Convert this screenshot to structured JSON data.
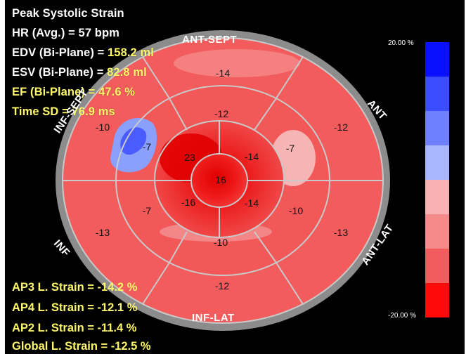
{
  "header": {
    "title": "Peak Systolic Strain",
    "hr": "HR (Avg.) = 57 bpm",
    "edv_label": "EDV (Bi-Plane) = ",
    "edv_value": "158.2 ml",
    "esv_label": "ESV (Bi-Plane) = ",
    "esv_value": "82.8 ml",
    "ef_label": "EF (Bi-Plane) = ",
    "ef_value": "47.6 %",
    "time_label": "Time SD = ",
    "time_value": "76.9 ms"
  },
  "footer": {
    "ap3_label": "AP3 L. Strain = ",
    "ap3_value": "-14.2 %",
    "ap4_label": "AP4 L. Strain = ",
    "ap4_value": "-12.1 %",
    "ap2_label": "AP2 L. Strain = ",
    "ap2_value": "-11.4 %",
    "global_label": "Global L. Strain = ",
    "global_value": "-12.5 %"
  },
  "walls": {
    "ant_sept": "ANT-SEPT",
    "ant": "ANT",
    "ant_lat": "ANT-LAT",
    "inf_lat": "INF-LAT",
    "inf": "INF",
    "inf_sept": "INF-SEPT"
  },
  "segments": {
    "basal_ant_sept": "-14",
    "basal_ant": "-12",
    "basal_ant_lat": "-13",
    "basal_inf_lat": "-12",
    "basal_inf": "-13",
    "basal_inf_sept": "-10",
    "mid_ant_sept": "-12",
    "mid_ant": "-7",
    "mid_ant_lat": "-10",
    "mid_inf_lat": "-10",
    "mid_inf": "-7",
    "mid_inf_sept": "-7",
    "apical_ant": "-14",
    "apical_lat": "-14",
    "apical_inf": "-16",
    "apical_sept": "23",
    "apex": "16"
  },
  "colorbar": {
    "max_label": "20.00 %",
    "min_label": "-20.00 %",
    "max_color": "#1a1aff",
    "min_color": "#ff0000"
  }
}
